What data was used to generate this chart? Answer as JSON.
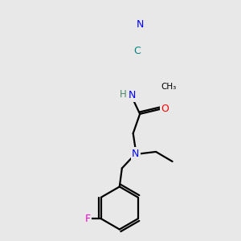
{
  "background_color": "#e8e8e8",
  "atom_colors": {
    "N": "#0000ff",
    "O": "#ff0000",
    "F": "#ff00cc",
    "C_nitrile": "#008080",
    "H_color": "#4a8a6a",
    "C": "#000000"
  },
  "title": "",
  "figsize": [
    3.0,
    3.0
  ],
  "dpi": 100
}
